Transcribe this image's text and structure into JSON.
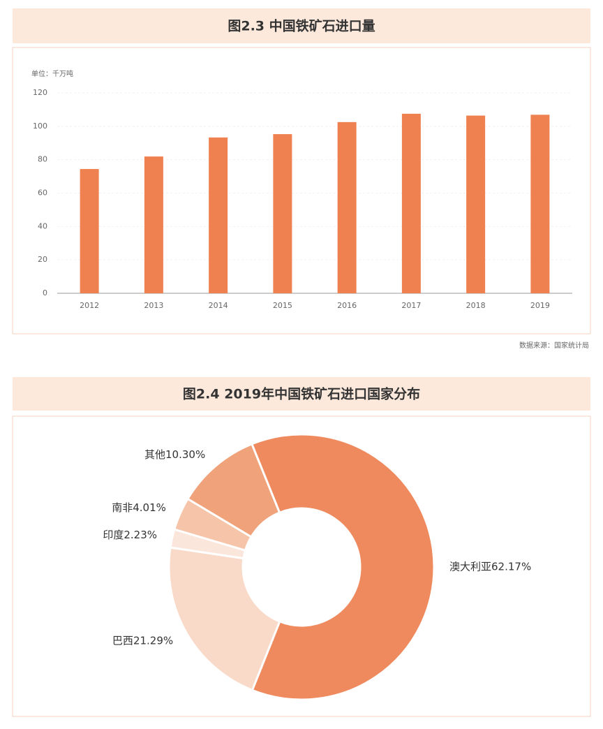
{
  "chart_data": [
    {
      "type": "bar",
      "title": "图2.3 中国铁矿石进口量",
      "y_label": "单位：千万吨",
      "source": "数据来源：国家统计局",
      "categories": [
        "2012",
        "2013",
        "2014",
        "2015",
        "2016",
        "2017",
        "2018",
        "2019"
      ],
      "values": [
        74.4,
        81.9,
        93.3,
        95.3,
        102.5,
        107.5,
        106.4,
        106.9
      ],
      "color": "#ef8050",
      "ylim": [
        0,
        120
      ],
      "yticks": [
        0,
        20,
        40,
        60,
        80,
        100,
        120
      ],
      "grid": true
    },
    {
      "type": "pie",
      "title": "图2.4 2019年中国铁矿石进口国家分布",
      "categories": [
        "澳大利亚",
        "巴西",
        "印度",
        "南非",
        "其他"
      ],
      "values": [
        62.17,
        21.29,
        2.23,
        4.01,
        10.3
      ],
      "value_labels": [
        "62.17%",
        "21.29%",
        "2.23%",
        "4.01%",
        "10.30%"
      ],
      "colors": [
        "#ef8a5e",
        "#f9d9c8",
        "#fbe6dc",
        "#f6c4a8",
        "#f0a27b"
      ]
    }
  ]
}
